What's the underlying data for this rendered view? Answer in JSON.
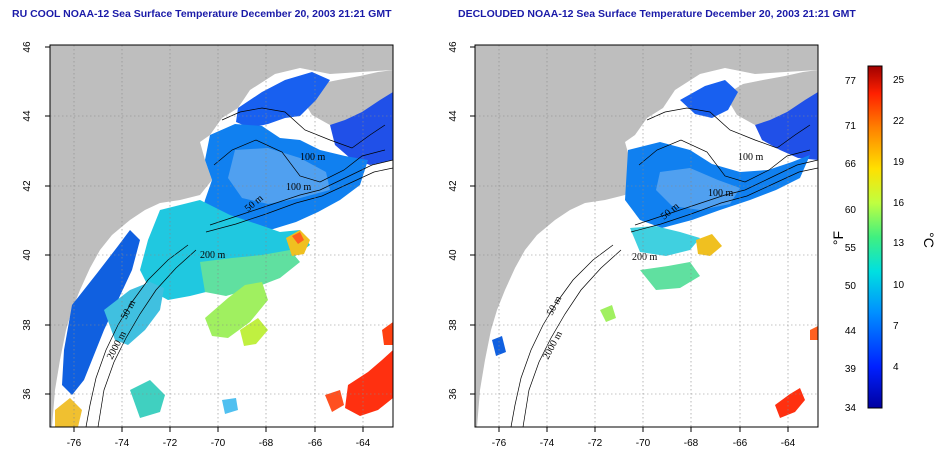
{
  "panels": [
    {
      "title": "RU COOL NOAA-12 Sea Surface Temperature December 20, 2003 21:21 GMT",
      "contour_labels": [
        "100 m",
        "100 m",
        "50 m",
        "200 m",
        "50 m",
        "2000 m"
      ]
    },
    {
      "title": "DECLOUDED NOAA-12 Sea Surface Temperature December 20, 2003 21:21 GMT",
      "contour_labels": [
        "100 m",
        "100 m",
        "50 m",
        "200 m",
        "50 m",
        "2000 m"
      ]
    }
  ],
  "axes": {
    "x_ticks": [
      "-76",
      "-74",
      "-72",
      "-70",
      "-68",
      "-66",
      "-64"
    ],
    "y_ticks": [
      "46",
      "44",
      "42",
      "40",
      "38",
      "36"
    ],
    "x_range": [
      -77.2,
      -62.9
    ],
    "y_range": [
      35.0,
      46.0
    ],
    "grid": "dotted"
  },
  "colorbar": {
    "fahrenheit_unit": "°F",
    "celsius_unit": "°C",
    "fahrenheit_ticks": [
      "77",
      "71",
      "66",
      "60",
      "55",
      "50",
      "44",
      "39",
      "34"
    ],
    "celsius_ticks": [
      "25",
      "22",
      "19",
      "16",
      "13",
      "10",
      "7",
      "4"
    ],
    "range_c": [
      1,
      26
    ],
    "colors": [
      "#0000a0",
      "#0020ff",
      "#0090ff",
      "#00e0e0",
      "#40f080",
      "#c0ff40",
      "#ffe000",
      "#ff8000",
      "#ff2000",
      "#a00000"
    ]
  },
  "colors": {
    "land": "#bebebe",
    "title": "#1a1aa8"
  }
}
